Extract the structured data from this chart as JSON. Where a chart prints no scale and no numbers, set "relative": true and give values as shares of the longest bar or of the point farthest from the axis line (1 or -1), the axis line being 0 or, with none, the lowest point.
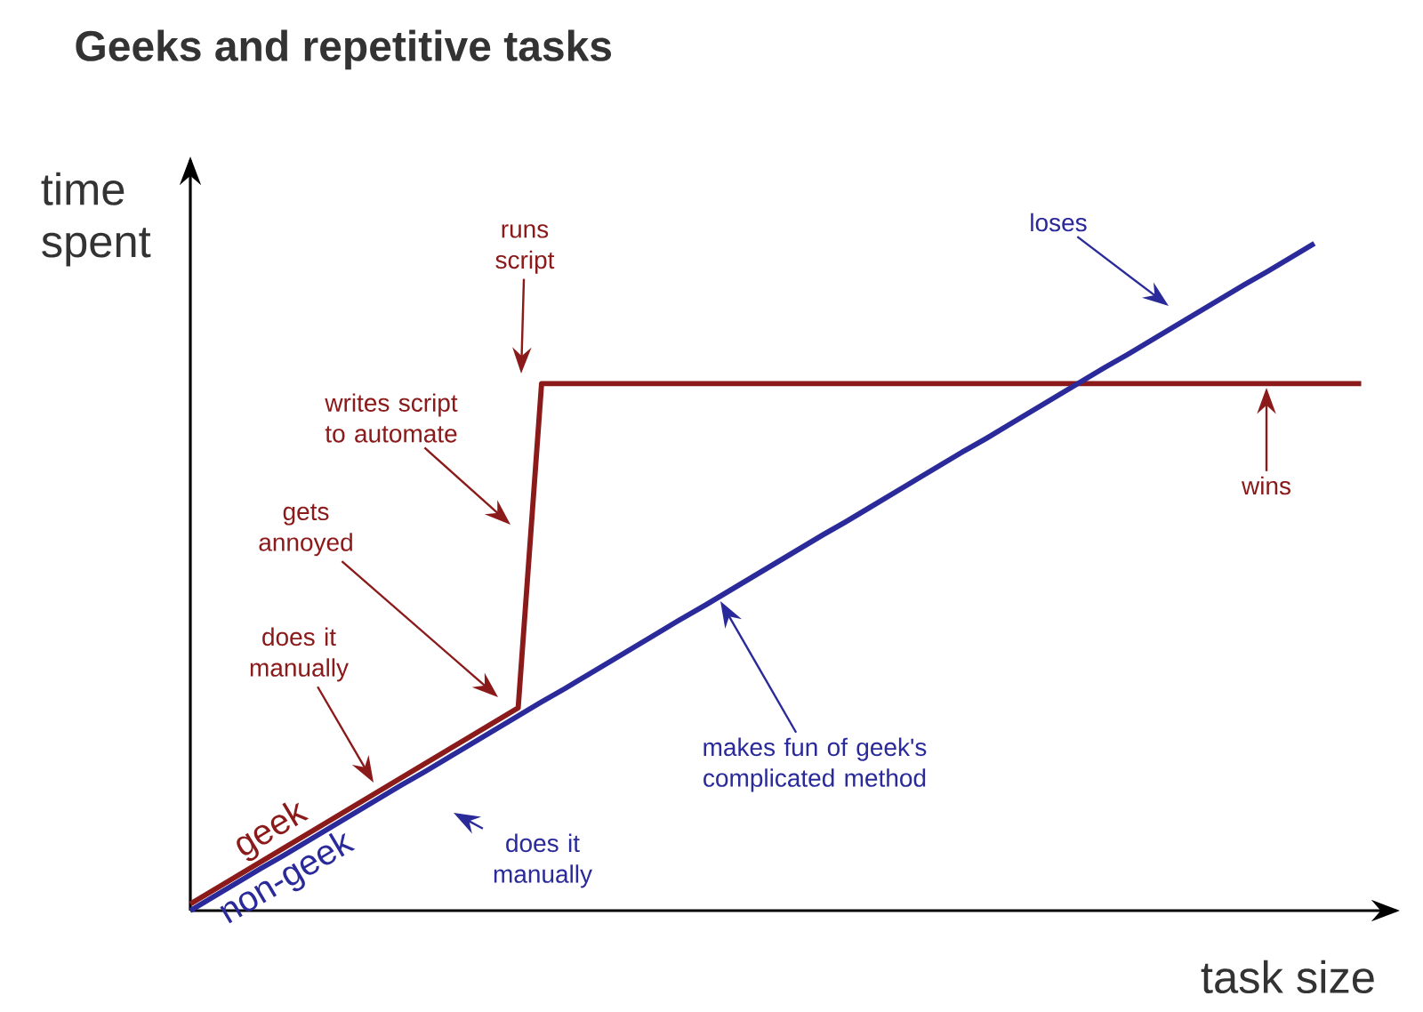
{
  "chart_data": {
    "type": "line",
    "title": "Geeks and repetitive tasks",
    "xlabel": "task size",
    "ylabel": "time spent",
    "relative": true,
    "categories": [
      null,
      null,
      null,
      null,
      null,
      null,
      null,
      null,
      null,
      null,
      null,
      null,
      null,
      null,
      null,
      null,
      null,
      null,
      null,
      null,
      null,
      null,
      null,
      null,
      null,
      null,
      null,
      null,
      null,
      null,
      null,
      null,
      null,
      null,
      null,
      null,
      null,
      null,
      null,
      null,
      null,
      null,
      null,
      null,
      null,
      null,
      null,
      null,
      null,
      null,
      null
    ],
    "series": [
      {
        "name": "geek",
        "color": "#8b1a1a",
        "values": [
          0.01,
          0.031,
          0.052,
          0.073,
          0.094,
          0.115,
          0.136,
          0.157,
          0.178,
          0.199,
          0.22,
          0.241,
          0.262,
          0.283,
          0.304,
          0.79,
          0.79,
          0.79,
          0.79,
          0.79,
          0.79,
          0.79,
          0.79,
          0.79,
          0.79,
          0.79,
          0.79,
          0.79,
          0.79,
          0.79,
          0.79,
          0.79,
          0.79,
          0.79,
          0.79,
          0.79,
          0.79,
          0.79,
          0.79,
          0.79,
          0.79,
          0.79,
          0.79,
          0.79,
          0.79,
          0.79,
          0.79,
          0.79,
          0.79,
          0.79,
          0.79
        ]
      },
      {
        "name": "non-geek",
        "color": "#2a2a9a",
        "values": [
          0,
          0.021,
          0.042,
          0.063,
          0.083,
          0.104,
          0.125,
          0.146,
          0.167,
          0.188,
          0.208,
          0.229,
          0.25,
          0.271,
          0.292,
          0.313,
          0.333,
          0.354,
          0.375,
          0.396,
          0.417,
          0.438,
          0.458,
          0.479,
          0.5,
          0.521,
          0.542,
          0.563,
          0.583,
          0.604,
          0.625,
          0.646,
          0.667,
          0.688,
          0.708,
          0.729,
          0.75,
          0.771,
          0.792,
          0.813,
          0.833,
          0.854,
          0.875,
          0.896,
          0.917,
          0.938,
          0.958,
          0.979,
          1,
          null,
          null
        ]
      }
    ],
    "annotations": [
      "runs script",
      "writes script to automate",
      "gets annoyed",
      "does it manually",
      "wins",
      "loses",
      "makes fun of geek's complicated method",
      "does it manually"
    ]
  }
}
